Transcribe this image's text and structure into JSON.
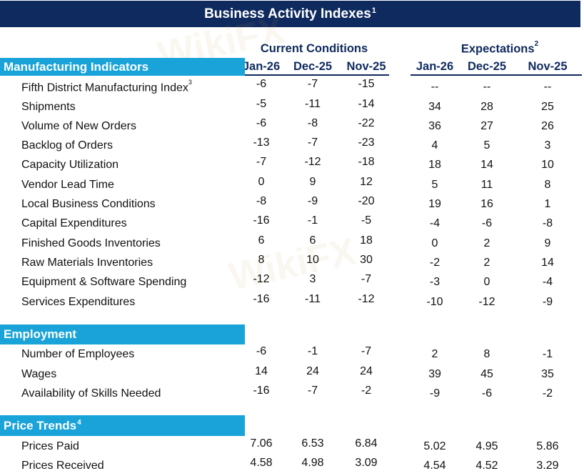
{
  "title": "Business Activity Indexes",
  "title_note": "1",
  "watermark_text": "WikiFX",
  "groups": {
    "current": "Current Conditions",
    "expectations": "Expectations",
    "expectations_note": "2"
  },
  "columns": [
    "Jan-26",
    "Dec-25",
    "Nov-25",
    "Jan-26",
    "Dec-25",
    "Nov-25"
  ],
  "sections": {
    "manufacturing": {
      "label": "Manufacturing Indicators"
    },
    "employment": {
      "label": "Employment"
    },
    "prices": {
      "label": "Price Trends",
      "note": "4"
    }
  },
  "rows": [
    {
      "label": "Fifth District Manufacturing Index",
      "note": "3",
      "cc": [
        "-6",
        "-7",
        "-15"
      ],
      "ex": [
        "--",
        "--",
        "--"
      ]
    },
    {
      "label": "Shipments",
      "cc": [
        "-5",
        "-11",
        "-14"
      ],
      "ex": [
        "34",
        "28",
        "25"
      ]
    },
    {
      "label": "Volume of New Orders",
      "cc": [
        "-6",
        "-8",
        "-22"
      ],
      "ex": [
        "36",
        "27",
        "26"
      ]
    },
    {
      "label": "Backlog of Orders",
      "cc": [
        "-13",
        "-7",
        "-23"
      ],
      "ex": [
        "4",
        "5",
        "3"
      ]
    },
    {
      "label": "Capacity Utilization",
      "cc": [
        "-7",
        "-12",
        "-18"
      ],
      "ex": [
        "18",
        "14",
        "10"
      ]
    },
    {
      "label": "Vendor Lead Time",
      "cc": [
        "0",
        "9",
        "12"
      ],
      "ex": [
        "5",
        "11",
        "8"
      ]
    },
    {
      "label": "Local Business Conditions",
      "cc": [
        "-8",
        "-9",
        "-20"
      ],
      "ex": [
        "19",
        "16",
        "1"
      ]
    },
    {
      "label": "Capital Expenditures",
      "cc": [
        "-16",
        "-1",
        "-5"
      ],
      "ex": [
        "-4",
        "-6",
        "-8"
      ]
    },
    {
      "label": "Finished Goods Inventories",
      "cc": [
        "6",
        "6",
        "18"
      ],
      "ex": [
        "0",
        "2",
        "9"
      ]
    },
    {
      "label": "Raw Materials Inventories",
      "cc": [
        "8",
        "10",
        "30"
      ],
      "ex": [
        "-2",
        "2",
        "14"
      ]
    },
    {
      "label": "Equipment & Software Spending",
      "cc": [
        "-12",
        "3",
        "-7"
      ],
      "ex": [
        "-3",
        "0",
        "-4"
      ]
    },
    {
      "label": "Services Expenditures",
      "cc": [
        "-16",
        "-11",
        "-12"
      ],
      "ex": [
        "-10",
        "-12",
        "-9"
      ]
    },
    {
      "label": "Number of Employees",
      "cc": [
        "-6",
        "-1",
        "-7"
      ],
      "ex": [
        "2",
        "8",
        "-1"
      ]
    },
    {
      "label": "Wages",
      "cc": [
        "14",
        "24",
        "24"
      ],
      "ex": [
        "39",
        "45",
        "35"
      ]
    },
    {
      "label": "Availability of Skills Needed",
      "cc": [
        "-16",
        "-7",
        "-2"
      ],
      "ex": [
        "-9",
        "-6",
        "-2"
      ]
    },
    {
      "label": "Prices Paid",
      "cc": [
        "7.06",
        "6.53",
        "6.84"
      ],
      "ex": [
        "5.02",
        "4.95",
        "5.86"
      ]
    },
    {
      "label": "Prices Received",
      "cc": [
        "4.58",
        "4.98",
        "3.09"
      ],
      "ex": [
        "4.54",
        "4.52",
        "3.29"
      ]
    }
  ]
}
